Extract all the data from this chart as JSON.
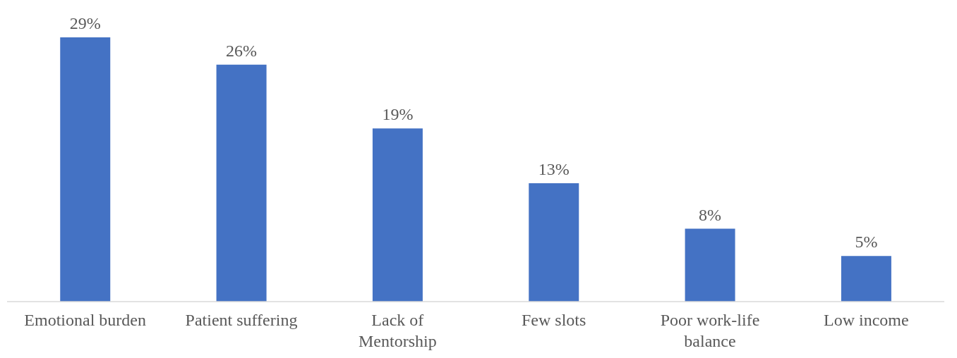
{
  "chart_data": {
    "type": "bar",
    "categories": [
      "Emotional burden",
      "Patient suffering",
      "Lack of Mentorship",
      "Few slots",
      "Poor work-life balance",
      "Low income"
    ],
    "values": [
      29,
      26,
      19,
      13,
      8,
      5
    ],
    "value_labels": [
      "29%",
      "26%",
      "19%",
      "13%",
      "8%",
      "5%"
    ],
    "color": "#4472c4",
    "grid": false,
    "legend": false
  }
}
